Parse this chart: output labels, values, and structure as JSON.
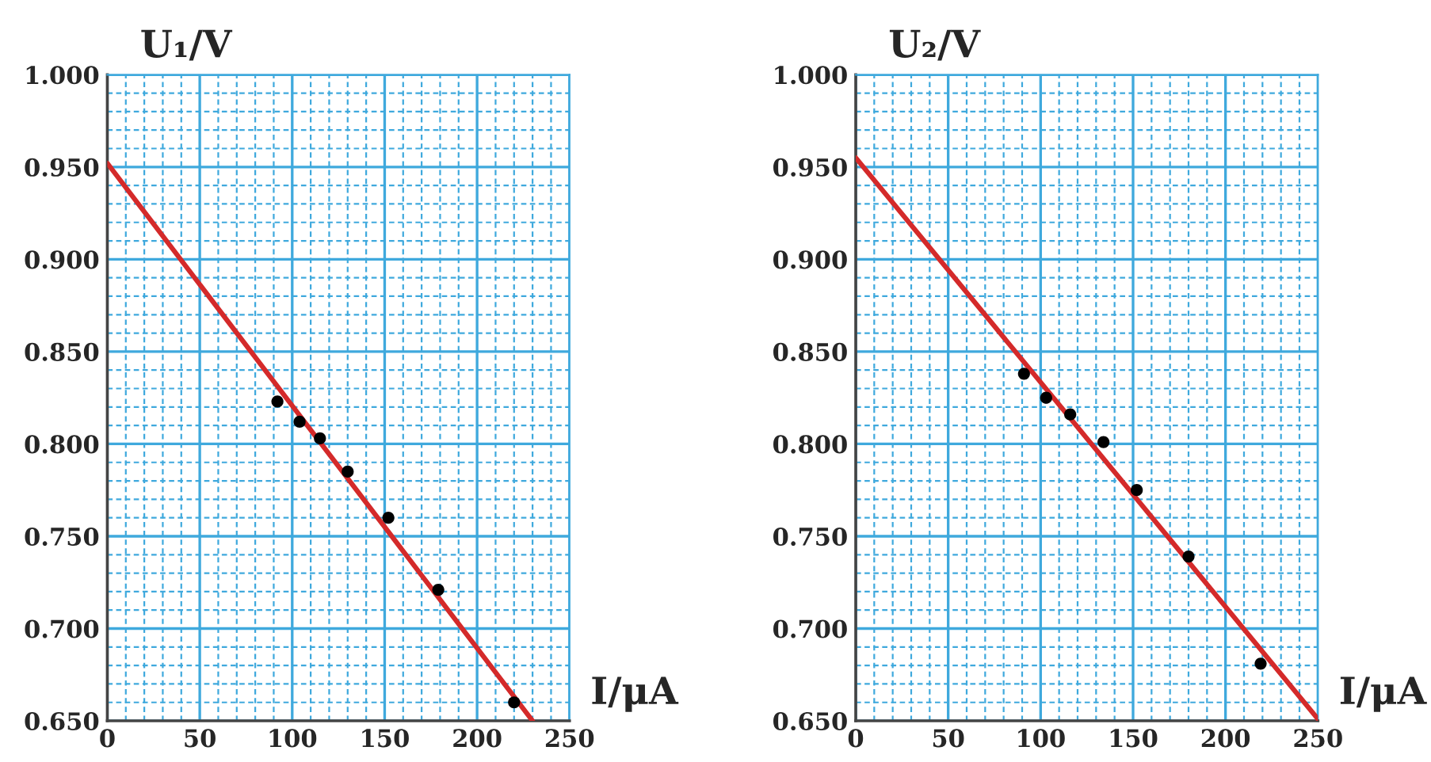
{
  "chart_data": [
    {
      "type": "scatter",
      "xlabel": "I/μA",
      "ylabel": "U₁/V",
      "xlim": [
        0,
        250
      ],
      "ylim": [
        0.65,
        1.0
      ],
      "xticks": [
        0,
        {
          "value": 10,
          "label": null
        },
        {
          "value": 20,
          "label": null
        },
        {
          "value": 30,
          "label": null
        },
        {
          "value": 40,
          "label": null
        },
        50,
        {
          "value": 60,
          "label": null
        },
        {
          "value": 70,
          "label": null
        },
        {
          "value": 80,
          "label": null
        },
        {
          "value": 90,
          "label": null
        },
        100,
        {
          "value": 110,
          "label": null
        },
        {
          "value": 120,
          "label": null
        },
        {
          "value": 130,
          "label": null
        },
        {
          "value": 140,
          "label": null
        },
        150,
        {
          "value": 160,
          "label": null
        },
        {
          "value": 170,
          "label": null
        },
        {
          "value": 180,
          "label": null
        },
        {
          "value": 190,
          "label": null
        },
        200,
        {
          "value": 210,
          "label": null
        },
        {
          "value": 220,
          "label": null
        },
        {
          "value": 230,
          "label": null
        },
        {
          "value": 240,
          "label": null
        },
        250
      ],
      "yticks": [
        {
          "value": 0.65,
          "label": "0.650"
        },
        {
          "value": 0.66,
          "label": null
        },
        {
          "value": 0.67,
          "label": null
        },
        {
          "value": 0.68,
          "label": null
        },
        {
          "value": 0.69,
          "label": null
        },
        {
          "value": 0.7,
          "label": "0.700"
        },
        {
          "value": 0.71,
          "label": null
        },
        {
          "value": 0.72,
          "label": null
        },
        {
          "value": 0.73,
          "label": null
        },
        {
          "value": 0.74,
          "label": null
        },
        {
          "value": 0.75,
          "label": "0.750"
        },
        {
          "value": 0.76,
          "label": null
        },
        {
          "value": 0.77,
          "label": null
        },
        {
          "value": 0.78,
          "label": null
        },
        {
          "value": 0.79,
          "label": null
        },
        {
          "value": 0.8,
          "label": "0.800"
        },
        {
          "value": 0.81,
          "label": null
        },
        {
          "value": 0.82,
          "label": null
        },
        {
          "value": 0.83,
          "label": null
        },
        {
          "value": 0.84,
          "label": null
        },
        {
          "value": 0.85,
          "label": "0.850"
        },
        {
          "value": 0.86,
          "label": null
        },
        {
          "value": 0.87,
          "label": null
        },
        {
          "value": 0.88,
          "label": null
        },
        {
          "value": 0.89,
          "label": null
        },
        {
          "value": 0.9,
          "label": "0.900"
        },
        {
          "value": 0.91,
          "label": null
        },
        {
          "value": 0.92,
          "label": null
        },
        {
          "value": 0.93,
          "label": null
        },
        {
          "value": 0.94,
          "label": null
        },
        {
          "value": 0.95,
          "label": "0.950"
        },
        {
          "value": 0.96,
          "label": null
        },
        {
          "value": 0.97,
          "label": null
        },
        {
          "value": 0.98,
          "label": null
        },
        {
          "value": 0.99,
          "label": null
        },
        {
          "value": 1.0,
          "label": "1.000"
        }
      ],
      "grid": true,
      "series": [
        {
          "color": "#000000",
          "marker": "circle",
          "x": [
            92,
            104,
            115,
            130,
            152,
            179,
            220
          ],
          "values": [
            0.823,
            0.812,
            0.803,
            0.785,
            0.76,
            0.721,
            0.66
          ]
        },
        {
          "type": "line",
          "color": "#d42a2a",
          "x": [
            0,
            230
          ],
          "values": [
            0.952,
            0.65
          ]
        }
      ]
    },
    {
      "type": "scatter",
      "xlabel": "I/μA",
      "ylabel": "U₂/V",
      "xlim": [
        0,
        250
      ],
      "ylim": [
        0.65,
        1.0
      ],
      "xticks": [
        0,
        {
          "value": 10,
          "label": null
        },
        {
          "value": 20,
          "label": null
        },
        {
          "value": 30,
          "label": null
        },
        {
          "value": 40,
          "label": null
        },
        50,
        {
          "value": 60,
          "label": null
        },
        {
          "value": 70,
          "label": null
        },
        {
          "value": 80,
          "label": null
        },
        {
          "value": 90,
          "label": null
        },
        100,
        {
          "value": 110,
          "label": null
        },
        {
          "value": 120,
          "label": null
        },
        {
          "value": 130,
          "label": null
        },
        {
          "value": 140,
          "label": null
        },
        150,
        {
          "value": 160,
          "label": null
        },
        {
          "value": 170,
          "label": null
        },
        {
          "value": 180,
          "label": null
        },
        {
          "value": 190,
          "label": null
        },
        200,
        {
          "value": 210,
          "label": null
        },
        {
          "value": 220,
          "label": null
        },
        {
          "value": 230,
          "label": null
        },
        {
          "value": 240,
          "label": null
        },
        250
      ],
      "yticks": [
        {
          "value": 0.65,
          "label": "0.650"
        },
        {
          "value": 0.66,
          "label": null
        },
        {
          "value": 0.67,
          "label": null
        },
        {
          "value": 0.68,
          "label": null
        },
        {
          "value": 0.69,
          "label": null
        },
        {
          "value": 0.7,
          "label": "0.700"
        },
        {
          "value": 0.71,
          "label": null
        },
        {
          "value": 0.72,
          "label": null
        },
        {
          "value": 0.73,
          "label": null
        },
        {
          "value": 0.74,
          "label": null
        },
        {
          "value": 0.75,
          "label": "0.750"
        },
        {
          "value": 0.76,
          "label": null
        },
        {
          "value": 0.77,
          "label": null
        },
        {
          "value": 0.78,
          "label": null
        },
        {
          "value": 0.79,
          "label": null
        },
        {
          "value": 0.8,
          "label": "0.800"
        },
        {
          "value": 0.81,
          "label": null
        },
        {
          "value": 0.82,
          "label": null
        },
        {
          "value": 0.83,
          "label": null
        },
        {
          "value": 0.84,
          "label": null
        },
        {
          "value": 0.85,
          "label": "0.850"
        },
        {
          "value": 0.86,
          "label": null
        },
        {
          "value": 0.87,
          "label": null
        },
        {
          "value": 0.88,
          "label": null
        },
        {
          "value": 0.89,
          "label": null
        },
        {
          "value": 0.9,
          "label": "0.900"
        },
        {
          "value": 0.91,
          "label": null
        },
        {
          "value": 0.92,
          "label": null
        },
        {
          "value": 0.93,
          "label": null
        },
        {
          "value": 0.94,
          "label": null
        },
        {
          "value": 0.95,
          "label": "0.950"
        },
        {
          "value": 0.96,
          "label": null
        },
        {
          "value": 0.97,
          "label": null
        },
        {
          "value": 0.98,
          "label": null
        },
        {
          "value": 0.99,
          "label": null
        },
        {
          "value": 1.0,
          "label": "1.000"
        }
      ],
      "grid": true,
      "series": [
        {
          "color": "#000000",
          "marker": "circle",
          "x": [
            91,
            103,
            116,
            134,
            152,
            180,
            219
          ],
          "values": [
            0.838,
            0.825,
            0.816,
            0.801,
            0.775,
            0.739,
            0.681
          ]
        },
        {
          "type": "line",
          "color": "#d42a2a",
          "x": [
            0,
            250
          ],
          "values": [
            0.955,
            0.651
          ]
        }
      ]
    }
  ]
}
